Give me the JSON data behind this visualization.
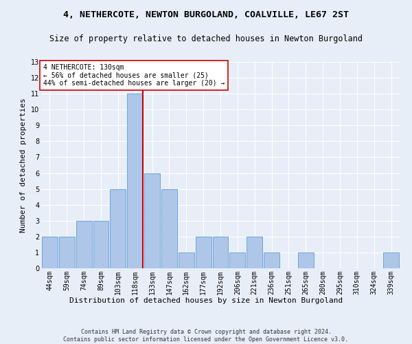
{
  "title": "4, NETHERCOTE, NEWTON BURGOLAND, COALVILLE, LE67 2ST",
  "subtitle": "Size of property relative to detached houses in Newton Burgoland",
  "xlabel": "Distribution of detached houses by size in Newton Burgoland",
  "ylabel": "Number of detached properties",
  "footnote": "Contains HM Land Registry data © Crown copyright and database right 2024.\nContains public sector information licensed under the Open Government Licence v3.0.",
  "categories": [
    "44sqm",
    "59sqm",
    "74sqm",
    "89sqm",
    "103sqm",
    "118sqm",
    "133sqm",
    "147sqm",
    "162sqm",
    "177sqm",
    "192sqm",
    "206sqm",
    "221sqm",
    "236sqm",
    "251sqm",
    "265sqm",
    "280sqm",
    "295sqm",
    "310sqm",
    "324sqm",
    "339sqm"
  ],
  "values": [
    2,
    2,
    3,
    3,
    5,
    11,
    6,
    5,
    1,
    2,
    2,
    1,
    2,
    1,
    0,
    1,
    0,
    0,
    0,
    0,
    1
  ],
  "bar_color": "#aec6e8",
  "bar_edge_color": "#5a9fd4",
  "highlight_index": 5,
  "highlight_line_color": "#cc0000",
  "annotation_text": "4 NETHERCOTE: 130sqm\n← 56% of detached houses are smaller (25)\n44% of semi-detached houses are larger (20) →",
  "annotation_box_color": "#ffffff",
  "annotation_box_edge": "#cc0000",
  "ylim": [
    0,
    13
  ],
  "yticks": [
    0,
    1,
    2,
    3,
    4,
    5,
    6,
    7,
    8,
    9,
    10,
    11,
    12,
    13
  ],
  "background_color": "#e8eef8",
  "grid_color": "#ffffff",
  "title_fontsize": 9.5,
  "subtitle_fontsize": 8.5,
  "ylabel_fontsize": 8,
  "xlabel_fontsize": 8,
  "footnote_fontsize": 6,
  "tick_fontsize": 7,
  "annotation_fontsize": 7
}
